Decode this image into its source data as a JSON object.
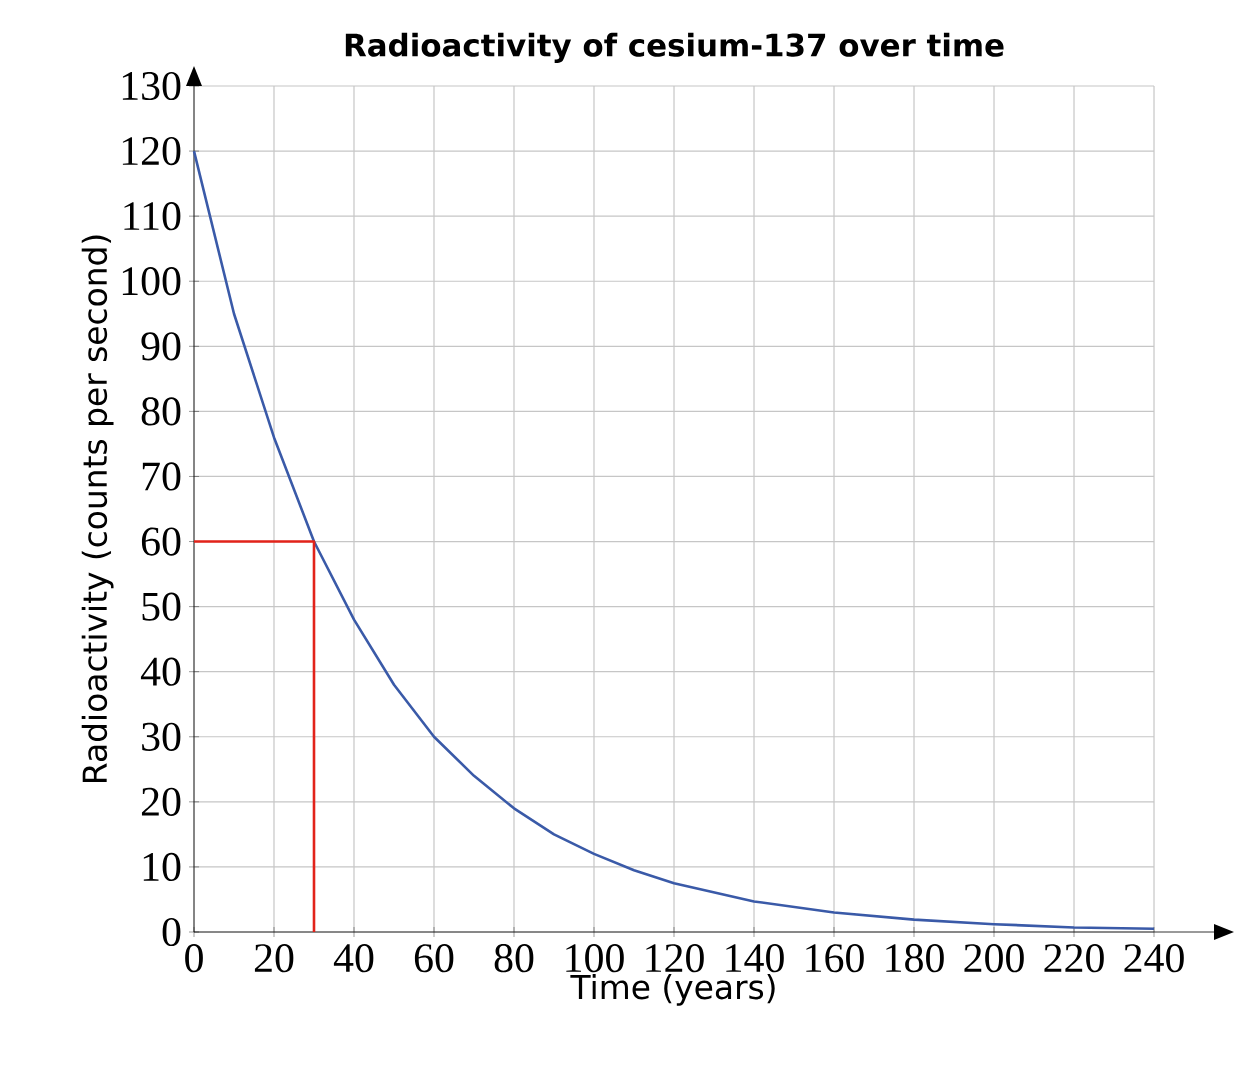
{
  "chart_data": {
    "type": "line",
    "title": "Radioactivity of cesium-137 over time",
    "xlabel": "Time (years)",
    "ylabel": "Radioactivity (counts per second)",
    "xlim": [
      0,
      240
    ],
    "ylim": [
      0,
      130
    ],
    "xticks": [
      0,
      20,
      40,
      60,
      80,
      100,
      120,
      140,
      160,
      180,
      200,
      220,
      240
    ],
    "yticks": [
      0,
      10,
      20,
      30,
      40,
      50,
      60,
      70,
      80,
      90,
      100,
      110,
      120,
      130
    ],
    "grid": true,
    "marker": "none",
    "line_style": "solid",
    "series": [
      {
        "color": "#3a5aa8",
        "x": [
          0,
          10,
          20,
          30,
          40,
          50,
          60,
          70,
          80,
          90,
          100,
          110,
          120,
          140,
          160,
          180,
          200,
          220,
          240
        ],
        "values": [
          120,
          95,
          76,
          60,
          48,
          38,
          30,
          24,
          19,
          15,
          12,
          9.5,
          7.5,
          4.7,
          3,
          1.9,
          1.2,
          0.7,
          0.5
        ]
      },
      {
        "color": "#e2231a",
        "x": [
          0,
          30,
          30
        ],
        "values": [
          60,
          60,
          0
        ]
      }
    ]
  }
}
